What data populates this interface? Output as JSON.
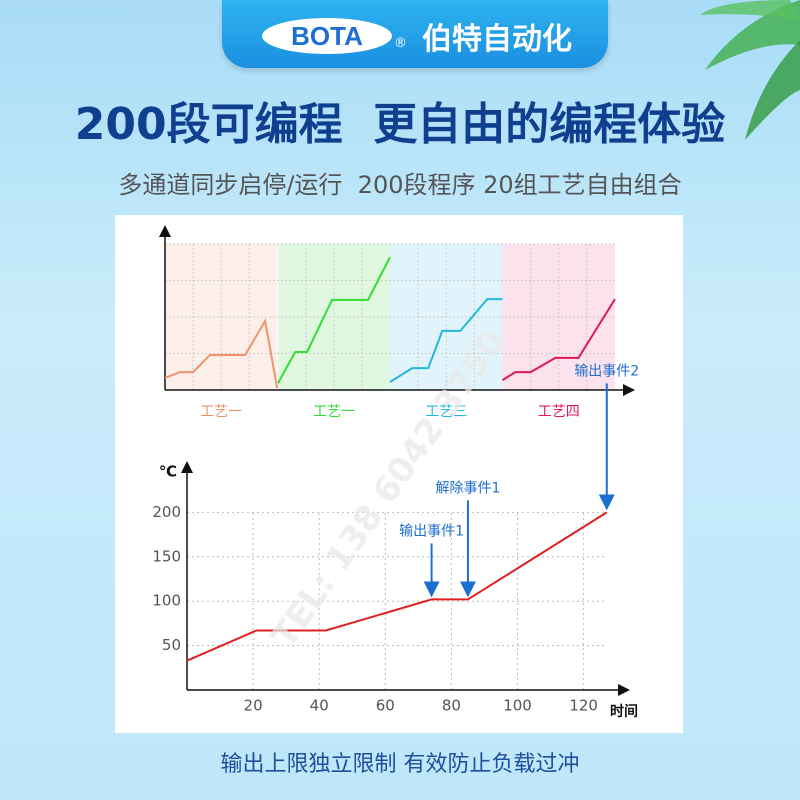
{
  "header": {
    "logo": "BOTA",
    "registered": "®",
    "brand": "伯特自动化"
  },
  "title": "200段可编程  更自由的编程体验",
  "subtitle": "多通道同步启停/运行  200段程序 20组工艺自由组合",
  "watermark": "TEL: 138 6042 3750",
  "footer": "输出上限独立限制 有效防止负载过冲",
  "chart_data": [
    {
      "type": "line",
      "xlim": [
        0,
        16
      ],
      "ylim": [
        0,
        4
      ],
      "series": [
        {
          "name": "工艺一",
          "color": "#f0936a",
          "x": [
            0,
            0.53,
            1,
            1.6,
            2.85,
            3.56,
            3.99
          ],
          "values": [
            0.33,
            0.49,
            0.49,
            0.96,
            0.96,
            1.89,
            0.05
          ]
        },
        {
          "name": "工艺一",
          "color": "#33dd33",
          "x": [
            4.02,
            4.63,
            5.05,
            5.94,
            7.22,
            8.0
          ],
          "values": [
            0.19,
            1.04,
            1.04,
            2.47,
            2.47,
            3.64
          ]
        },
        {
          "name": "工艺三",
          "color": "#22b8dd",
          "x": [
            8.0,
            8.79,
            9.36,
            9.86,
            10.5,
            11.46,
            12.0
          ],
          "values": [
            0.22,
            0.6,
            0.6,
            1.62,
            1.62,
            2.49,
            2.49
          ]
        },
        {
          "name": "工艺四",
          "color": "#e0175e",
          "x": [
            12.0,
            12.46,
            13.0,
            13.88,
            14.7,
            16.0
          ],
          "values": [
            0.27,
            0.49,
            0.49,
            0.88,
            0.88,
            2.49
          ]
        }
      ]
    },
    {
      "type": "line",
      "ylabel": "℃",
      "xlabel": "时间",
      "color": "#e02020",
      "x": [
        0,
        21,
        42,
        74,
        85,
        127
      ],
      "values": [
        33,
        67,
        67,
        102,
        102,
        200
      ],
      "xlim": [
        0,
        131
      ],
      "ylim": [
        0,
        250
      ],
      "xticks": [
        20,
        40,
        60,
        80,
        100,
        120
      ],
      "yticks": [
        50,
        100,
        150,
        200
      ],
      "annotations": [
        {
          "text": "输出事件1",
          "x": 74
        },
        {
          "text": "解除事件1",
          "x": 85
        },
        {
          "text": "输出事件2",
          "x": 127
        }
      ]
    }
  ]
}
